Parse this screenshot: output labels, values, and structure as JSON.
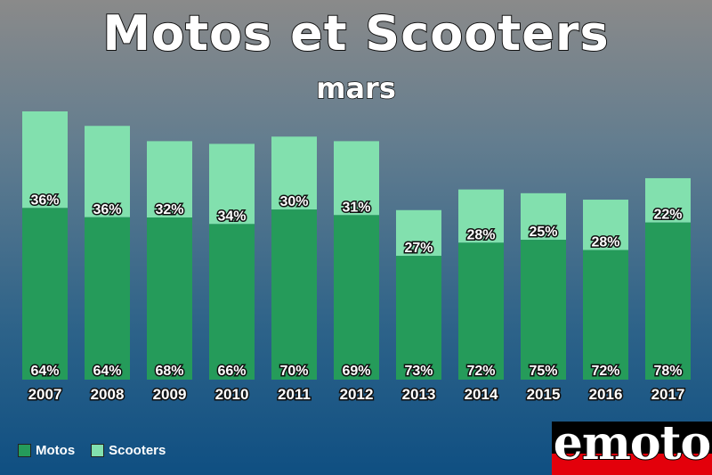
{
  "header": {
    "title": "Motos et Scooters",
    "subtitle": "mars"
  },
  "legend": [
    {
      "label": "Motos",
      "color": "#259b5a"
    },
    {
      "label": "Scooters",
      "color": "#82e0ae"
    }
  ],
  "logo": {
    "text": "emoto"
  },
  "colors": {
    "motos": "#259b5a",
    "scooters": "#82e0ae"
  },
  "chart_data": {
    "type": "bar",
    "stacked": true,
    "title": "Motos et Scooters",
    "subtitle": "mars",
    "categories": [
      "2007",
      "2008",
      "2009",
      "2010",
      "2011",
      "2012",
      "2013",
      "2014",
      "2015",
      "2016",
      "2017"
    ],
    "totals_relative": [
      1.0,
      0.946,
      0.889,
      0.879,
      0.906,
      0.889,
      0.632,
      0.709,
      0.695,
      0.671,
      0.751
    ],
    "series": [
      {
        "name": "Motos",
        "values": [
          64,
          64,
          68,
          66,
          70,
          69,
          73,
          72,
          75,
          72,
          78
        ],
        "labels": [
          "64%",
          "64%",
          "68%",
          "66%",
          "70%",
          "69%",
          "73%",
          "72%",
          "75%",
          "72%",
          "78%"
        ]
      },
      {
        "name": "Scooters",
        "values": [
          36,
          36,
          32,
          34,
          30,
          31,
          27,
          28,
          25,
          28,
          22
        ],
        "labels": [
          "36%",
          "36%",
          "32%",
          "34%",
          "30%",
          "31%",
          "27%",
          "28%",
          "25%",
          "28%",
          "22%"
        ]
      }
    ],
    "xlabel": "",
    "ylabel": "",
    "y_axis_shown": false,
    "grid": false,
    "legend_position": "bottom-left"
  }
}
